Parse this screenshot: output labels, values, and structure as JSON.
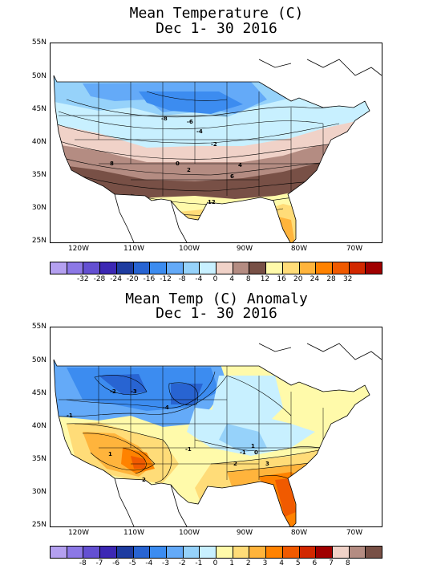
{
  "map1": {
    "title_line1": "Mean Temperature (C)",
    "title_line2": "Dec 1- 30 2016",
    "lat_labels": [
      "55N",
      "50N",
      "45N",
      "40N",
      "35N",
      "30N",
      "25N"
    ],
    "lon_labels": [
      "120W",
      "110W",
      "100W",
      "90W",
      "80W",
      "70W"
    ],
    "contour_labels": [
      "-8",
      "-6",
      "-4",
      "-2",
      "0",
      "2",
      "4",
      "6",
      "8",
      "12"
    ],
    "colorbar_ticks": [
      "-32",
      "-28",
      "-24",
      "-20",
      "-16",
      "-12",
      "-8",
      "-4",
      "0",
      "4",
      "8",
      "12",
      "16",
      "20",
      "24",
      "28",
      "32"
    ],
    "colorbar_colors": [
      "#b4a0f0",
      "#8c78e6",
      "#6450d2",
      "#3c28b4",
      "#1e3ca0",
      "#2864d2",
      "#3c8cf0",
      "#64aaf8",
      "#96d2fa",
      "#c8f0ff",
      "#f0d2c8",
      "#b48c82",
      "#785046",
      "#fffaaa",
      "#ffdc78",
      "#ffb43c",
      "#ff8200",
      "#f05a00",
      "#d22800",
      "#a00000"
    ]
  },
  "map2": {
    "title_line1": "Mean Temp (C) Anomaly",
    "title_line2": "Dec 1- 30 2016",
    "lat_labels": [
      "55N",
      "50N",
      "45N",
      "40N",
      "35N",
      "30N",
      "25N"
    ],
    "lon_labels": [
      "120W",
      "110W",
      "100W",
      "90W",
      "80W",
      "70W"
    ],
    "contour_labels": [
      "-1",
      "-2",
      "-3",
      "-4",
      "-1",
      "1",
      "2",
      "3",
      "2",
      "-1",
      "0",
      "1"
    ],
    "colorbar_ticks": [
      "-8",
      "-7",
      "-6",
      "-5",
      "-4",
      "-3",
      "-2",
      "-1",
      "0",
      "1",
      "2",
      "3",
      "4",
      "5",
      "6",
      "7",
      "8"
    ],
    "colorbar_colors": [
      "#b4a0f0",
      "#8c78e6",
      "#6450d2",
      "#3c28b4",
      "#1e3ca0",
      "#2864d2",
      "#3c8cf0",
      "#64aaf8",
      "#96d2fa",
      "#c8f0ff",
      "#fffaaa",
      "#ffdc78",
      "#ffb43c",
      "#ff8200",
      "#f05a00",
      "#d22800",
      "#a00000",
      "#f0d2c8",
      "#b48c82",
      "#785046"
    ]
  }
}
